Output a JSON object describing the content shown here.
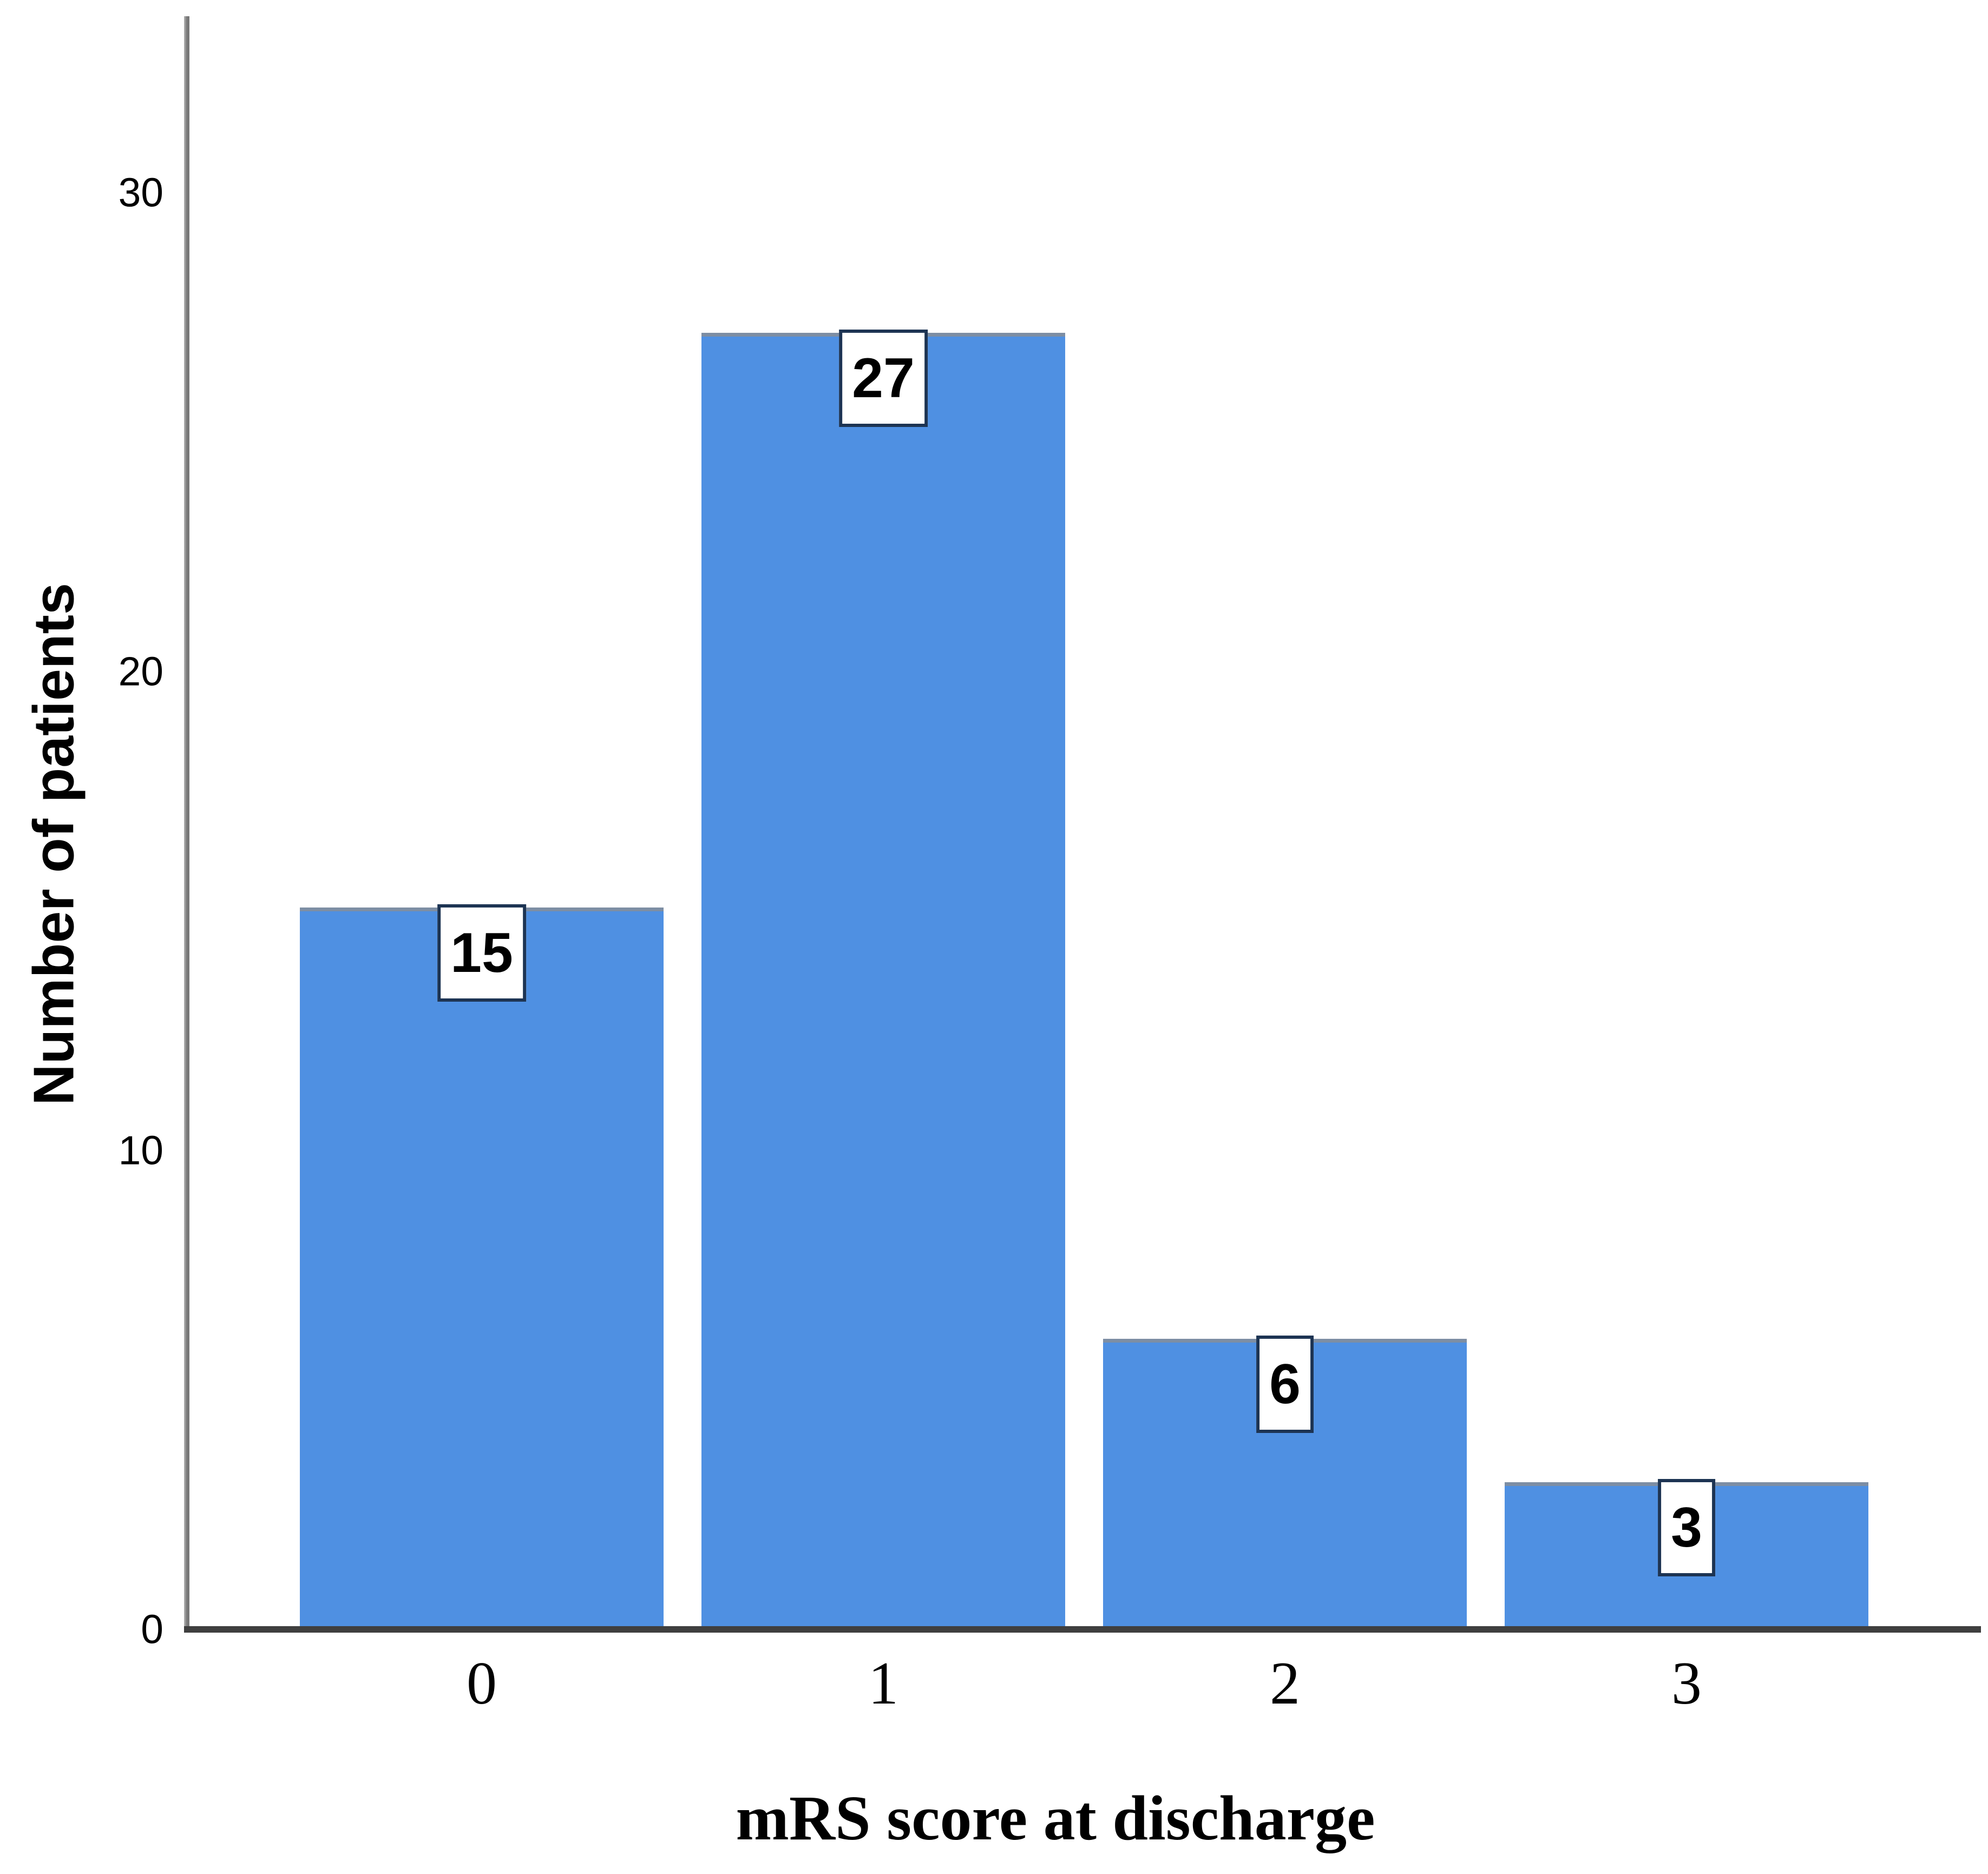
{
  "chart_data": {
    "type": "bar",
    "title": "",
    "xlabel": "mRS score at discharge",
    "ylabel": "Number of patients",
    "categories": [
      "0",
      "1",
      "2",
      "3"
    ],
    "values": [
      15,
      27,
      6,
      3
    ],
    "bar_value_labels": [
      "15",
      "27",
      "6",
      "3"
    ],
    "yticks": [
      0,
      10,
      20,
      30
    ],
    "ytick_labels": [
      "0",
      "10",
      "20",
      "30"
    ],
    "ylim": [
      0,
      33.6
    ],
    "grid": "off",
    "legend": "none",
    "colors": {
      "bar_fill": "#4f90e2",
      "bar_top_edge": "#7d8ea4",
      "y_axis_line": "#8c8c8c",
      "x_axis_line": "#3f3f3f",
      "value_box_border": "#1d3453",
      "value_box_fill": "#ffffff",
      "text": "#000000",
      "background": "#ffffff"
    }
  }
}
